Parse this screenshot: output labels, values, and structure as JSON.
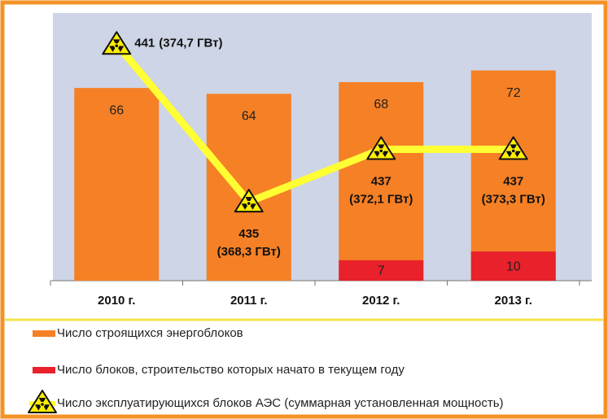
{
  "chart_data": {
    "type": "bar",
    "categories": [
      "2010 г.",
      "2011 г.",
      "2012 г.",
      "2013 г."
    ],
    "ylim": [
      0,
      90
    ],
    "y2lim": [
      432,
      442
    ],
    "series": [
      {
        "name": "Число строящихся энергоблоков",
        "color": "#f58025",
        "values": [
          66,
          64,
          68,
          72
        ]
      },
      {
        "name": "Число блоков, строительство которых начато в текущем году",
        "color": "#e8212b",
        "values": [
          null,
          null,
          7,
          10
        ]
      },
      {
        "name": "Число эксплуатирующихся блоков АЭС (суммарная установленная мощность)",
        "type": "line",
        "axis": "y2",
        "color": "#ffff33",
        "values": [
          441,
          435,
          437,
          437
        ],
        "capacity": [
          374.7,
          368.3,
          372.1,
          373.3
        ],
        "capacity_labels": [
          "(374,7 ГВт)",
          "(368,3 ГВт)",
          "(372,1 ГВт)",
          "(373,3 ГВт)"
        ]
      }
    ]
  }
}
